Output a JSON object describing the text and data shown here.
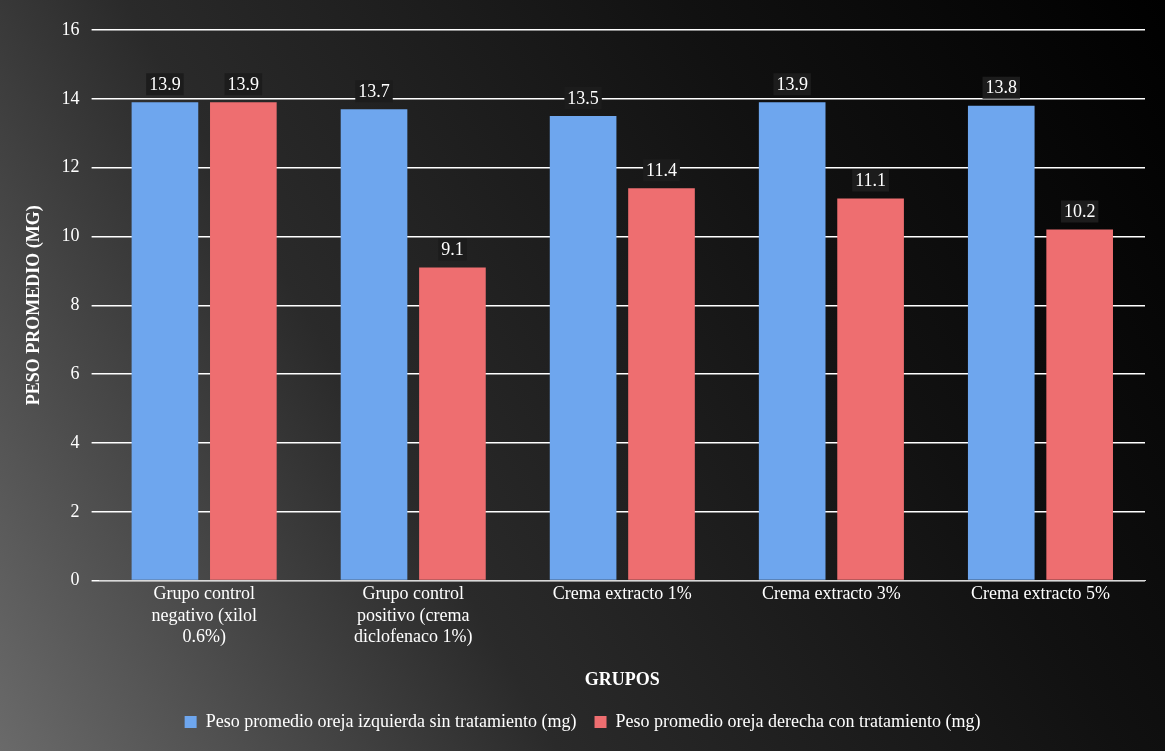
{
  "chart_data": {
    "type": "bar",
    "xlabel": "GRUPOS",
    "ylabel": "PESO PROMEDIO (MG)",
    "categories": [
      "Grupo control negativo (xilol 0.6%)",
      "Grupo control positivo (crema diclofenaco 1%)",
      "Crema extracto 1%",
      "Crema extracto 3%",
      "Crema extracto 5%"
    ],
    "series": [
      {
        "name": "Peso promedio oreja izquierda sin tratamiento (mg)",
        "color": "#6ea6ee",
        "values": [
          13.9,
          13.7,
          13.5,
          13.9,
          13.8
        ]
      },
      {
        "name": "Peso promedio oreja derecha con tratamiento (mg)",
        "color": "#ee6e70",
        "values": [
          13.9,
          9.1,
          11.4,
          11.1,
          10.2
        ]
      }
    ],
    "ylim": [
      0,
      16
    ],
    "yticks": [
      0,
      2,
      4,
      6,
      8,
      10,
      12,
      14,
      16
    ],
    "grid": "y",
    "legend": "bottom",
    "data_labels": true
  }
}
